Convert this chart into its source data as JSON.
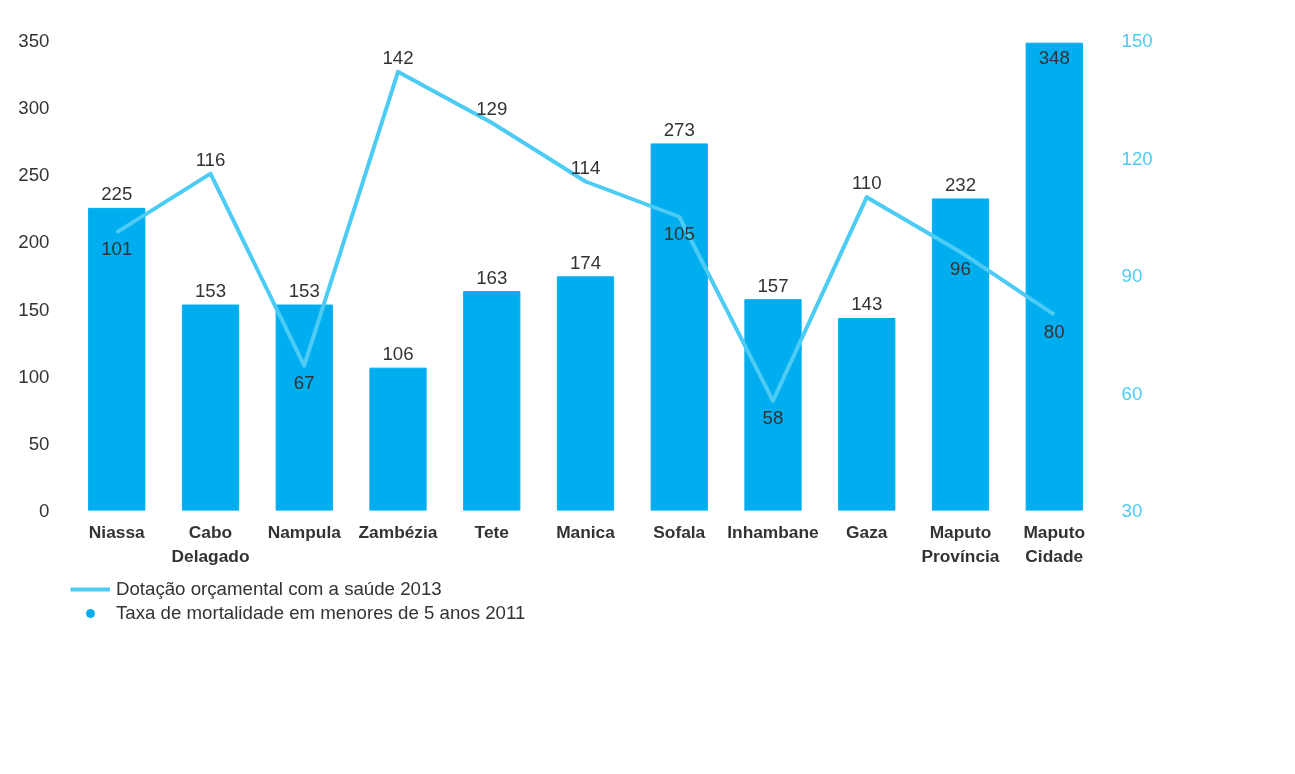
{
  "chart_data": {
    "type": "bar",
    "categories": [
      "Niassa",
      "Cabo\nDelagado",
      "Nampula",
      "Zambézia",
      "Tete",
      "Manica",
      "Sofala",
      "Inhambane",
      "Gaza",
      "Maputo\nProvíncia",
      "Maputo\nCidade"
    ],
    "series": [
      {
        "name": "Taxa de mortalidade em menores de 5 anos 2011",
        "color": "#00aeef",
        "values": [
          225,
          153,
          153,
          106,
          163,
          174,
          273,
          157,
          143,
          232,
          348
        ]
      },
      {
        "name": "Dotação orçamental com a saúde 2013",
        "type": "line",
        "axis": "y2",
        "color": "#4ccbf5",
        "values": [
          101,
          116,
          67,
          142,
          129,
          114,
          105,
          58,
          110,
          96,
          80
        ]
      }
    ],
    "ylim": [
      0,
      350
    ],
    "yticks": [
      0,
      50,
      100,
      150,
      200,
      250,
      300,
      350
    ],
    "y2lim": [
      30,
      150
    ],
    "y2ticks": [
      30,
      60,
      90,
      120,
      150
    ],
    "data_labels": true,
    "grid": false,
    "legend": "bottom left",
    "line_style": "solid",
    "marker": "none"
  }
}
